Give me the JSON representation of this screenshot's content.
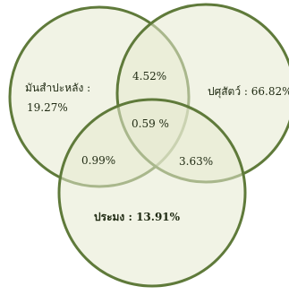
{
  "colors": {
    "circle_fill": "#e6e9cf",
    "overlap_fill": "#d9dcbd",
    "circle_stroke": "#5f7a3a",
    "text": "#1f2a12"
  },
  "sets": [
    {
      "name": "มันสำปะหลัง :",
      "value": "19.27%"
    },
    {
      "name": "ปศุสัตว์ : 66.82%"
    },
    {
      "name": "ประมง : 13.91%"
    }
  ],
  "overlaps": {
    "cassava_livestock": "4.52%",
    "all_three": "0.59 %",
    "cassava_fishery": "0.99%",
    "livestock_fishery": "3.63%"
  }
}
